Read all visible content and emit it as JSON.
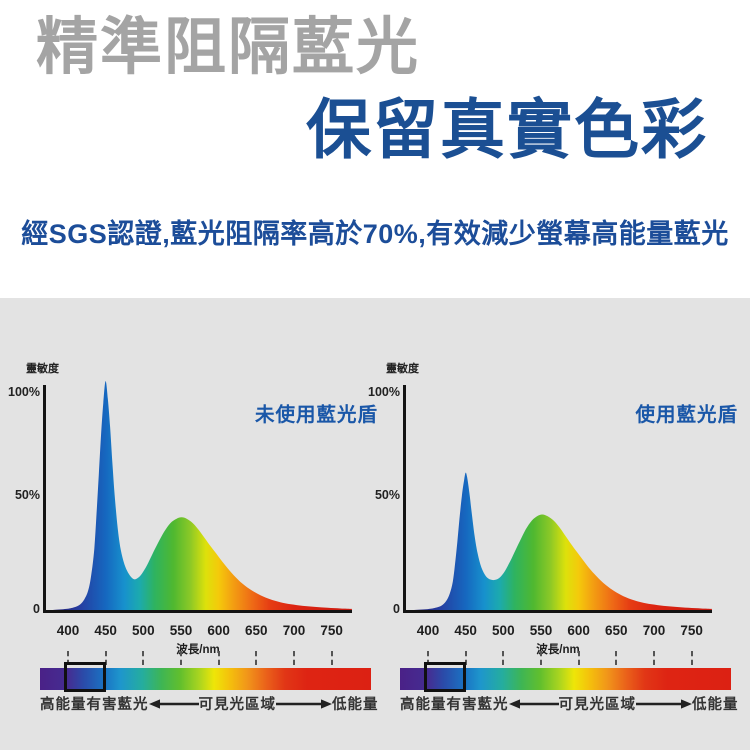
{
  "page": {
    "background": "#ffffff",
    "panel_background": "#e3e3e3"
  },
  "header": {
    "title_line1": "精準阻隔藍光",
    "title_line1_color": "#a4a4a4",
    "title_line2": "保留真實色彩",
    "title_line2_color": "#1b4f93",
    "subtitle": "經SGS認證,藍光阻隔率高於70%,有效減少螢幕高能量藍光",
    "subtitle_color": "#1c4d99"
  },
  "chart_data": [
    {
      "type": "area",
      "title": "未使用藍光盾",
      "ylabel": "靈敏度",
      "xlabel": "波長/nm",
      "yticks": [
        "100%",
        "50%",
        "0"
      ],
      "xticks": [
        400,
        450,
        500,
        550,
        600,
        650,
        700,
        750
      ],
      "xlim": [
        370,
        777
      ],
      "ylim": [
        0,
        107
      ],
      "grid": false,
      "blue_peak": {
        "wavelength_nm": 450,
        "intensity_pct": 105
      },
      "valley": {
        "wavelength_nm": 489,
        "intensity_pct": 14
      },
      "green_peak": {
        "wavelength_nm": 551,
        "intensity_pct": 42.5
      },
      "points": [
        [
          380,
          0
        ],
        [
          398,
          0.5
        ],
        [
          408,
          1.2
        ],
        [
          416,
          2.5
        ],
        [
          422,
          5
        ],
        [
          427,
          9
        ],
        [
          431,
          16
        ],
        [
          435,
          28
        ],
        [
          438,
          44
        ],
        [
          441,
          62
        ],
        [
          444,
          80
        ],
        [
          447,
          95
        ],
        [
          450,
          105
        ],
        [
          453,
          97
        ],
        [
          456,
          84
        ],
        [
          459,
          68
        ],
        [
          462,
          53
        ],
        [
          466,
          38
        ],
        [
          470,
          28
        ],
        [
          475,
          21
        ],
        [
          481,
          16.5
        ],
        [
          487,
          14.2
        ],
        [
          492,
          14.5
        ],
        [
          498,
          16.5
        ],
        [
          505,
          20.5
        ],
        [
          512,
          25.5
        ],
        [
          520,
          31
        ],
        [
          528,
          36
        ],
        [
          536,
          39.8
        ],
        [
          544,
          41.8
        ],
        [
          551,
          42.5
        ],
        [
          558,
          41.8
        ],
        [
          566,
          39.8
        ],
        [
          574,
          36.6
        ],
        [
          582,
          32.8
        ],
        [
          590,
          29
        ],
        [
          600,
          24.5
        ],
        [
          610,
          20
        ],
        [
          620,
          16
        ],
        [
          632,
          12
        ],
        [
          644,
          9
        ],
        [
          656,
          6.7
        ],
        [
          668,
          5
        ],
        [
          682,
          3.6
        ],
        [
          696,
          2.6
        ],
        [
          712,
          1.9
        ],
        [
          728,
          1.4
        ],
        [
          745,
          1
        ],
        [
          762,
          0.7
        ],
        [
          777,
          0.5
        ]
      ]
    },
    {
      "type": "area",
      "title": "使用藍光盾",
      "ylabel": "靈敏度",
      "xlabel": "波長/nm",
      "yticks": [
        "100%",
        "50%",
        "0"
      ],
      "xticks": [
        400,
        450,
        500,
        550,
        600,
        650,
        700,
        750
      ],
      "xlim": [
        370,
        777
      ],
      "ylim": [
        0,
        107
      ],
      "grid": false,
      "blue_peak": {
        "wavelength_nm": 450,
        "intensity_pct": 63
      },
      "valley": {
        "wavelength_nm": 489,
        "intensity_pct": 14
      },
      "green_peak": {
        "wavelength_nm": 552,
        "intensity_pct": 43.8
      },
      "points": [
        [
          380,
          0
        ],
        [
          400,
          0.4
        ],
        [
          410,
          1
        ],
        [
          418,
          2
        ],
        [
          424,
          4
        ],
        [
          429,
          7.5
        ],
        [
          433,
          13
        ],
        [
          436,
          21
        ],
        [
          439,
          31
        ],
        [
          442,
          42
        ],
        [
          445,
          52
        ],
        [
          448,
          59.5
        ],
        [
          450,
          63
        ],
        [
          452,
          61
        ],
        [
          455,
          54
        ],
        [
          458,
          45
        ],
        [
          462,
          34
        ],
        [
          466,
          26
        ],
        [
          471,
          19.5
        ],
        [
          477,
          15.5
        ],
        [
          483,
          14
        ],
        [
          489,
          13.8
        ],
        [
          495,
          14.8
        ],
        [
          501,
          17.2
        ],
        [
          508,
          21.5
        ],
        [
          515,
          26.5
        ],
        [
          522,
          31.5
        ],
        [
          530,
          37
        ],
        [
          538,
          41
        ],
        [
          546,
          43.2
        ],
        [
          552,
          43.8
        ],
        [
          559,
          43
        ],
        [
          567,
          41
        ],
        [
          575,
          37.8
        ],
        [
          583,
          33.8
        ],
        [
          591,
          29.8
        ],
        [
          601,
          25.2
        ],
        [
          611,
          20.6
        ],
        [
          621,
          16.5
        ],
        [
          633,
          12.4
        ],
        [
          645,
          9.2
        ],
        [
          657,
          6.8
        ],
        [
          669,
          5
        ],
        [
          683,
          3.6
        ],
        [
          697,
          2.6
        ],
        [
          713,
          1.9
        ],
        [
          729,
          1.4
        ],
        [
          746,
          1
        ],
        [
          763,
          0.7
        ],
        [
          777,
          0.5
        ]
      ]
    }
  ],
  "spectrum_gradient": [
    [
      370,
      "#241563"
    ],
    [
      415,
      "#263da0"
    ],
    [
      450,
      "#1667bf"
    ],
    [
      475,
      "#1791cd"
    ],
    [
      495,
      "#1caaae"
    ],
    [
      515,
      "#2eb360"
    ],
    [
      540,
      "#4fb830"
    ],
    [
      562,
      "#8ac827"
    ],
    [
      583,
      "#dde10b"
    ],
    [
      600,
      "#f4ca0b"
    ],
    [
      620,
      "#f39d12"
    ],
    [
      645,
      "#ee6a16"
    ],
    [
      668,
      "#e63d13"
    ],
    [
      700,
      "#dc2412"
    ],
    [
      777,
      "#cb1c11"
    ]
  ],
  "colorbar": {
    "label_left": "高能量有害藍光",
    "label_center": "可見光區域",
    "label_right": "低能量",
    "highlight_range_nm": [
      400,
      450
    ],
    "tick_positions_nm": [
      400,
      450,
      500,
      550,
      600,
      650,
      700,
      750
    ],
    "gradient": [
      [
        0,
        "#4a2187"
      ],
      [
        8.5,
        "#452d92"
      ],
      [
        13,
        "#2b4aa8"
      ],
      [
        19.7,
        "#1a74c4"
      ],
      [
        24.3,
        "#1e96cc"
      ],
      [
        31,
        "#25ad9e"
      ],
      [
        36.7,
        "#3eb554"
      ],
      [
        42.4,
        "#62bf2d"
      ],
      [
        48,
        "#a8d420"
      ],
      [
        52.6,
        "#eee608"
      ],
      [
        57.2,
        "#f4c10c"
      ],
      [
        62.7,
        "#f1951a"
      ],
      [
        68.4,
        "#ea611a"
      ],
      [
        74,
        "#e13616"
      ],
      [
        80.8,
        "#de2413"
      ],
      [
        100,
        "#dc2113"
      ]
    ]
  }
}
